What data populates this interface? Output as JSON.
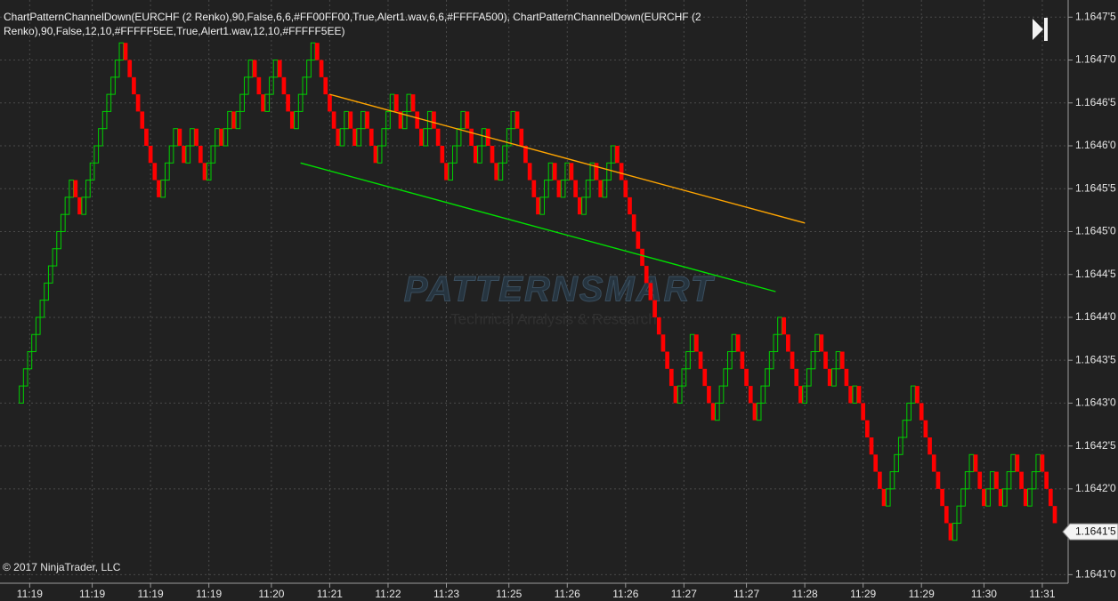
{
  "chart_data": {
    "type": "renko",
    "title": "ChartPatternChannelDown(EURCHF (2 Renko),90,False,6,6,#FF00FF00,True,Alert1.wav,6,6,#FFFFA500), ChartPatternChannelDown(EURCHF (2 Renko),90,False,12,10,#FFFFF5EE,True,Alert1.wav,12,10,#FFFFF5EE)",
    "copyright": "© 2017 NinjaTrader, LLC",
    "watermark": "PATTERNSMART",
    "watermark_subtitle": "Technical Analysis & Research",
    "categories": [
      null,
      null,
      "11:19",
      null,
      null,
      null,
      null,
      null,
      null,
      null,
      null,
      null,
      null,
      null,
      null,
      null,
      null,
      "11:19",
      null,
      null,
      null,
      null,
      null,
      null,
      null,
      null,
      null,
      null,
      null,
      null,
      null,
      "11:19",
      null,
      null,
      null,
      null,
      null,
      null,
      null,
      null,
      null,
      null,
      null,
      null,
      null,
      "11:19",
      null,
      null,
      null,
      null,
      null,
      null,
      null,
      null,
      null,
      null,
      null,
      null,
      null,
      null,
      "11:20",
      null,
      null,
      null,
      null,
      null,
      null,
      null,
      null,
      null,
      null,
      null,
      null,
      null,
      "11:21",
      null,
      null,
      null,
      null,
      null,
      null,
      null,
      null,
      null,
      null,
      null,
      null,
      null,
      "11:22",
      null,
      null,
      null,
      null,
      null,
      null,
      null,
      null,
      null,
      null,
      null,
      null,
      null,
      "11:23",
      null,
      null,
      null,
      null,
      null,
      null,
      null,
      null,
      null,
      null,
      null,
      null,
      null,
      null,
      "11:25",
      null,
      null,
      null,
      null,
      null,
      null,
      null,
      null,
      null,
      null,
      null,
      null,
      null,
      "11:26",
      null,
      null,
      null,
      null,
      null,
      null,
      null,
      null,
      null,
      null,
      null,
      null,
      null,
      "11:26",
      null,
      null,
      null,
      null,
      null,
      null,
      null,
      null,
      null,
      null,
      null,
      null,
      null,
      "11:27",
      null,
      null,
      null,
      null,
      null,
      null,
      null,
      null,
      null,
      null,
      null,
      null,
      null,
      null,
      "11:27",
      null,
      null,
      null,
      null,
      null,
      null,
      null,
      null,
      null,
      null,
      null,
      null,
      null,
      "11:28",
      null,
      null,
      null,
      null,
      null,
      null,
      null,
      null,
      null,
      null,
      null,
      null,
      null,
      "11:29",
      null,
      null,
      null,
      null,
      null,
      null,
      null,
      null,
      null,
      null,
      null,
      null,
      null,
      "11:29",
      null,
      null,
      null,
      null,
      null,
      null,
      null,
      null,
      null,
      null,
      null,
      null,
      null,
      null,
      "11:30",
      null,
      null,
      null,
      null,
      null,
      null,
      null,
      null,
      null,
      null,
      null,
      null,
      null,
      "11:31",
      null,
      null,
      null
    ],
    "series": [
      {
        "up_color": "#00d000",
        "down_color": "#ff0000",
        "values": [
          1.16432,
          1.16434,
          1.16436,
          1.16438,
          1.1644,
          1.16442,
          1.16444,
          1.16446,
          1.16448,
          1.1645,
          1.16452,
          1.16454,
          1.16456,
          1.16454,
          1.16452,
          1.16454,
          1.16456,
          1.16458,
          1.1646,
          1.16462,
          1.16464,
          1.16466,
          1.16468,
          1.1647,
          1.16472,
          1.1647,
          1.16468,
          1.16466,
          1.16464,
          1.16462,
          1.1646,
          1.16458,
          1.16456,
          1.16454,
          1.16456,
          1.16458,
          1.1646,
          1.16462,
          1.1646,
          1.16458,
          1.1646,
          1.16462,
          1.1646,
          1.16458,
          1.16456,
          1.16458,
          1.1646,
          1.16462,
          1.1646,
          1.16462,
          1.16464,
          1.16462,
          1.16464,
          1.16466,
          1.16468,
          1.1647,
          1.16468,
          1.16466,
          1.16464,
          1.16466,
          1.16468,
          1.1647,
          1.16468,
          1.16466,
          1.16464,
          1.16462,
          1.16464,
          1.16466,
          1.16468,
          1.1647,
          1.16472,
          1.1647,
          1.16468,
          1.16466,
          1.16464,
          1.16462,
          1.1646,
          1.16462,
          1.16464,
          1.16462,
          1.1646,
          1.16462,
          1.16464,
          1.16462,
          1.1646,
          1.16458,
          1.1646,
          1.16462,
          1.16464,
          1.16466,
          1.16464,
          1.16462,
          1.16464,
          1.16466,
          1.16464,
          1.16462,
          1.1646,
          1.16462,
          1.16464,
          1.16462,
          1.1646,
          1.16458,
          1.16456,
          1.16458,
          1.1646,
          1.16462,
          1.16464,
          1.16462,
          1.1646,
          1.16458,
          1.1646,
          1.16462,
          1.1646,
          1.16458,
          1.16456,
          1.16458,
          1.1646,
          1.16462,
          1.16464,
          1.16462,
          1.1646,
          1.16458,
          1.16456,
          1.16454,
          1.16452,
          1.16454,
          1.16456,
          1.16458,
          1.16456,
          1.16454,
          1.16456,
          1.16458,
          1.16456,
          1.16454,
          1.16452,
          1.16454,
          1.16456,
          1.16458,
          1.16456,
          1.16454,
          1.16456,
          1.16458,
          1.1646,
          1.16458,
          1.16456,
          1.16454,
          1.16452,
          1.1645,
          1.16448,
          1.16446,
          1.16444,
          1.16442,
          1.1644,
          1.16438,
          1.16436,
          1.16434,
          1.16432,
          1.1643,
          1.16432,
          1.16434,
          1.16436,
          1.16438,
          1.16436,
          1.16434,
          1.16432,
          1.1643,
          1.16428,
          1.1643,
          1.16432,
          1.16434,
          1.16436,
          1.16438,
          1.16436,
          1.16434,
          1.16432,
          1.1643,
          1.16428,
          1.1643,
          1.16432,
          1.16434,
          1.16436,
          1.16438,
          1.1644,
          1.16438,
          1.16436,
          1.16434,
          1.16432,
          1.1643,
          1.16432,
          1.16434,
          1.16436,
          1.16438,
          1.16436,
          1.16434,
          1.16432,
          1.16434,
          1.16436,
          1.16434,
          1.16432,
          1.1643,
          1.16432,
          1.1643,
          1.16428,
          1.16426,
          1.16424,
          1.16422,
          1.1642,
          1.16418,
          1.1642,
          1.16422,
          1.16424,
          1.16426,
          1.16428,
          1.1643,
          1.16432,
          1.1643,
          1.16428,
          1.16426,
          1.16424,
          1.16422,
          1.1642,
          1.16418,
          1.16416,
          1.16414,
          1.16416,
          1.16418,
          1.1642,
          1.16422,
          1.16424,
          1.16422,
          1.1642,
          1.16418,
          1.1642,
          1.16422,
          1.1642,
          1.16418,
          1.1642,
          1.16422,
          1.16424,
          1.16422,
          1.1642,
          1.16418,
          1.1642,
          1.16422,
          1.16424,
          1.16422,
          1.1642,
          1.16418,
          1.16416
        ]
      }
    ],
    "channel_lines": [
      {
        "color": "#ffa500",
        "x": [
          74,
          188
        ],
        "values": [
          1.16466,
          1.16451
        ]
      },
      {
        "color": "#00e000",
        "x": [
          67,
          181
        ],
        "values": [
          1.16458,
          1.16443
        ]
      }
    ],
    "ylim": [
      1.16409,
      1.16477
    ],
    "yticks": [
      {
        "value": 1.1641,
        "label": "1.1641'0"
      },
      {
        "value": 1.1642,
        "label": "1.1642'0"
      },
      {
        "value": 1.16425,
        "label": "1.1642'5"
      },
      {
        "value": 1.1643,
        "label": "1.1643'0"
      },
      {
        "value": 1.16435,
        "label": "1.1643'5"
      },
      {
        "value": 1.1644,
        "label": "1.1644'0"
      },
      {
        "value": 1.16445,
        "label": "1.1644'5"
      },
      {
        "value": 1.1645,
        "label": "1.1645'0"
      },
      {
        "value": 1.16455,
        "label": "1.1645'5"
      },
      {
        "value": 1.1646,
        "label": "1.1646'0"
      },
      {
        "value": 1.16465,
        "label": "1.1646'5"
      },
      {
        "value": 1.1647,
        "label": "1.1647'0"
      },
      {
        "value": 1.16475,
        "label": "1.1647'5"
      }
    ],
    "last_price": {
      "value": 1.16415,
      "label": "1.1641'5"
    },
    "grid": true
  }
}
